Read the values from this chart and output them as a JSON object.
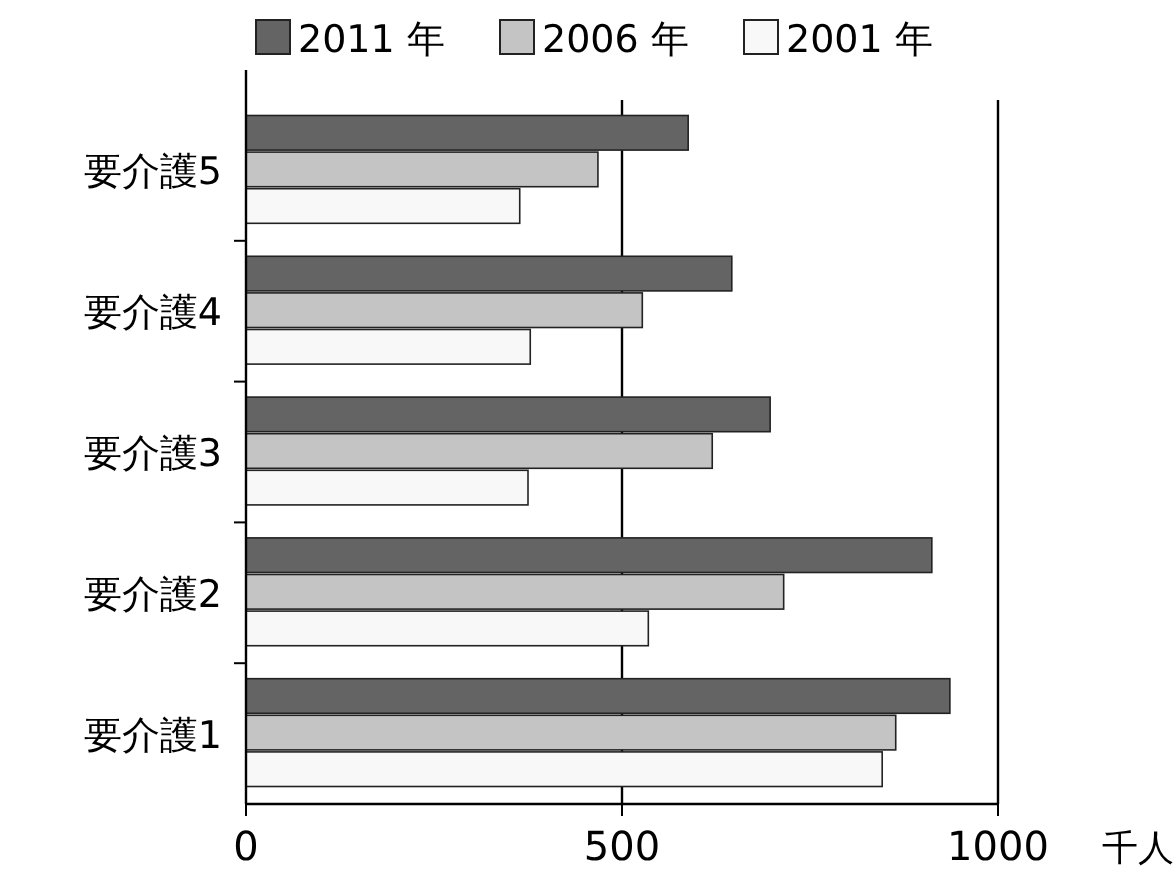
{
  "chart_data": {
    "type": "bar",
    "orientation": "horizontal",
    "categories": [
      "要介護5",
      "要介護4",
      "要介護3",
      "要介護2",
      "要介護1"
    ],
    "series": [
      {
        "name": "2011 年",
        "color": "#646464",
        "values": [
          588,
          646,
          697,
          912,
          936
        ]
      },
      {
        "name": "2006 年",
        "color": "#c4c4c4",
        "values": [
          468,
          527,
          620,
          715,
          864
        ]
      },
      {
        "name": "2001 年",
        "color": "#f8f8f8",
        "values": [
          364,
          378,
          375,
          535,
          846
        ]
      }
    ],
    "xlim": [
      0,
      1000
    ],
    "xticks": [
      0,
      500,
      1000
    ],
    "xlabel": "千人",
    "grid": "x",
    "legend": "top"
  }
}
